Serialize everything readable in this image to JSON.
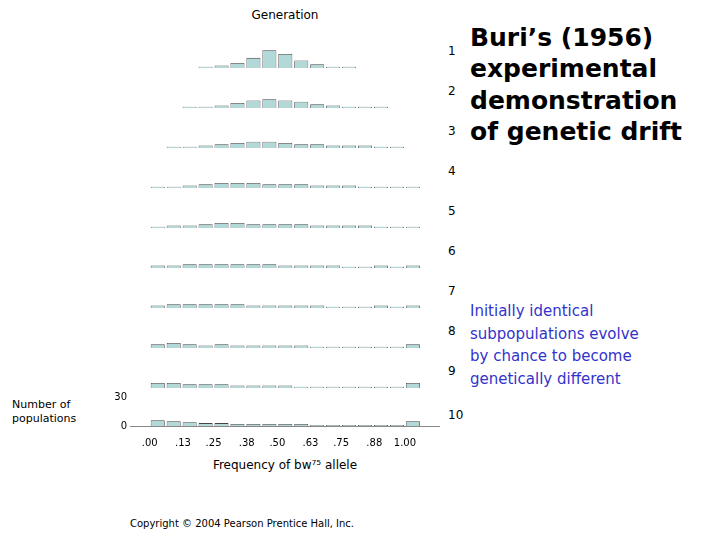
{
  "chart_data": {
    "type": "histogram",
    "title": "Buri’s (1956)\nexperimental\ndemonstration\nof genetic drift",
    "subtitle": "Initially identical\nsubpopulations evolve\nby chance to become\ngenetically different",
    "x_label": "Frequency of bw⁷⁵ allele",
    "y_label": "Number of\npopulations",
    "annotations": [
      "Generation",
      "Copyright © 2004 Pearson Prentice Hall, Inc."
    ],
    "bins": [
      0,
      0.0625,
      0.125,
      0.1875,
      0.25,
      0.3125,
      0.375,
      0.4375,
      0.5,
      0.5625,
      0.625,
      0.6875,
      0.75,
      0.8125,
      0.875,
      0.9375,
      1.0,
      1.0625
    ],
    "series": [
      {
        "name": "1",
        "values": [
          0,
          0,
          0,
          1,
          2,
          4,
          8,
          14,
          11,
          6,
          3,
          1,
          1,
          0,
          0,
          0,
          0
        ]
      },
      {
        "name": "2",
        "values": [
          0,
          0,
          1,
          1,
          2,
          4,
          6,
          7,
          6,
          5,
          3,
          2,
          1,
          1,
          1,
          0,
          0
        ]
      },
      {
        "name": "3",
        "values": [
          0,
          1,
          1,
          2,
          3,
          4,
          5,
          5,
          4,
          3,
          3,
          2,
          2,
          2,
          1,
          1,
          0
        ]
      },
      {
        "name": "4",
        "values": [
          1,
          1,
          2,
          3,
          4,
          4,
          4,
          3,
          3,
          3,
          2,
          2,
          2,
          1,
          1,
          1,
          1
        ]
      },
      {
        "name": "5",
        "values": [
          1,
          2,
          2,
          3,
          4,
          4,
          3,
          3,
          3,
          3,
          2,
          2,
          2,
          2,
          1,
          1,
          1
        ]
      },
      {
        "name": "6",
        "values": [
          2,
          2,
          3,
          3,
          3,
          3,
          3,
          3,
          2,
          2,
          2,
          2,
          1,
          1,
          2,
          1,
          2
        ]
      },
      {
        "name": "7",
        "values": [
          2,
          3,
          3,
          3,
          3,
          3,
          2,
          2,
          2,
          2,
          2,
          1,
          1,
          1,
          2,
          1,
          2
        ]
      },
      {
        "name": "8",
        "values": [
          3,
          4,
          3,
          2,
          3,
          2,
          2,
          2,
          2,
          2,
          1,
          1,
          1,
          1,
          1,
          1,
          3
        ]
      },
      {
        "name": "9",
        "values": [
          4,
          4,
          3,
          3,
          3,
          2,
          2,
          2,
          2,
          1,
          1,
          1,
          1,
          1,
          1,
          1,
          4
        ]
      },
      {
        "name": "10",
        "values": [
          6,
          5,
          4,
          3,
          3,
          2,
          2,
          2,
          2,
          2,
          1,
          1,
          1,
          1,
          1,
          1,
          5
        ]
      }
    ],
    "color": "#b2d8d8",
    "xlim": [
      -0.01,
      1.07
    ],
    "xticks": [
      {
        "value": 0.0,
        "label": ".00"
      },
      {
        "value": 0.13,
        "label": ".13"
      },
      {
        "value": 0.25,
        "label": ".25"
      },
      {
        "value": 0.38,
        "label": ".38"
      },
      {
        "value": 0.5,
        "label": ".50"
      },
      {
        "value": 0.63,
        "label": ".63"
      },
      {
        "value": 0.75,
        "label": ".75"
      },
      {
        "value": 0.88,
        "label": ".88"
      },
      {
        "value": 1.0,
        "label": "1.00"
      }
    ],
    "ylim": [
      0,
      30
    ],
    "yticks": [
      0,
      30
    ],
    "grid": false
  }
}
